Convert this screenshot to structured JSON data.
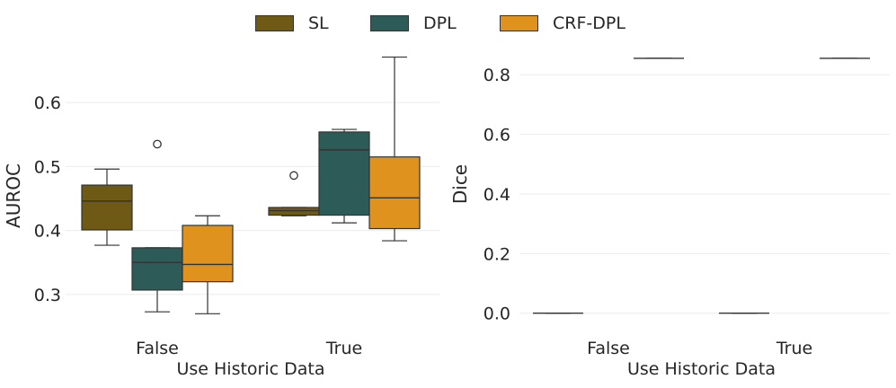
{
  "legend": {
    "items": [
      {
        "label": "SL",
        "color": "#6e5a14"
      },
      {
        "label": "DPL",
        "color": "#2d5b58"
      },
      {
        "label": "CRF-DPL",
        "color": "#e0921e"
      }
    ]
  },
  "chart_data": [
    {
      "type": "box",
      "xlabel": "Use Historic Data",
      "ylabel": "AUROC",
      "categories": [
        "False",
        "True"
      ],
      "yticks": [
        "0.3",
        "0.4",
        "0.5",
        "0.6"
      ],
      "ytick_values": [
        0.3,
        0.4,
        0.5,
        0.6
      ],
      "ylim": [
        0.255,
        0.69
      ],
      "grid": true,
      "series": [
        {
          "name": "SL",
          "boxes": [
            {
              "category": "False",
              "whislo": 0.377,
              "q1": 0.401,
              "med": 0.446,
              "q3": 0.471,
              "whishi": 0.496,
              "fliers": []
            },
            {
              "category": "True",
              "whislo": 0.423,
              "q1": 0.424,
              "med": 0.431,
              "q3": 0.436,
              "whishi": 0.436,
              "fliers": [
                0.486
              ]
            }
          ]
        },
        {
          "name": "DPL",
          "boxes": [
            {
              "category": "False",
              "whislo": 0.273,
              "q1": 0.307,
              "med": 0.35,
              "q3": 0.373,
              "whishi": 0.373,
              "fliers": [
                0.535
              ]
            },
            {
              "category": "True",
              "whislo": 0.412,
              "q1": 0.424,
              "med": 0.526,
              "q3": 0.554,
              "whishi": 0.558,
              "fliers": []
            }
          ]
        },
        {
          "name": "CRF-DPL",
          "boxes": [
            {
              "category": "False",
              "whislo": 0.27,
              "q1": 0.32,
              "med": 0.347,
              "q3": 0.408,
              "whishi": 0.423,
              "fliers": []
            },
            {
              "category": "True",
              "whislo": 0.384,
              "q1": 0.403,
              "med": 0.451,
              "q3": 0.515,
              "whishi": 0.671,
              "fliers": []
            }
          ]
        }
      ]
    },
    {
      "type": "box",
      "xlabel": "Use Historic Data",
      "ylabel": "Dice",
      "categories": [
        "False",
        "True"
      ],
      "yticks": [
        "0.0",
        "0.2",
        "0.4",
        "0.6",
        "0.8"
      ],
      "ytick_values": [
        0.0,
        0.2,
        0.4,
        0.6,
        0.8
      ],
      "ylim": [
        -0.04,
        0.9
      ],
      "grid": true,
      "series": [
        {
          "name": "SL",
          "boxes": [
            {
              "category": "False",
              "whislo": 0.0,
              "q1": 0.0,
              "med": 0.0,
              "q3": 0.0,
              "whishi": 0.0,
              "fliers": []
            },
            {
              "category": "True",
              "whislo": 0.0,
              "q1": 0.0,
              "med": 0.0,
              "q3": 0.0,
              "whishi": 0.0,
              "fliers": []
            }
          ]
        },
        {
          "name": "DPL",
          "boxes": []
        },
        {
          "name": "CRF-DPL",
          "boxes": [
            {
              "category": "False",
              "whislo": 0.855,
              "q1": 0.855,
              "med": 0.855,
              "q3": 0.855,
              "whishi": 0.855,
              "fliers": []
            },
            {
              "category": "True",
              "whislo": 0.855,
              "q1": 0.855,
              "med": 0.855,
              "q3": 0.855,
              "whishi": 0.855,
              "fliers": []
            }
          ]
        }
      ]
    }
  ]
}
